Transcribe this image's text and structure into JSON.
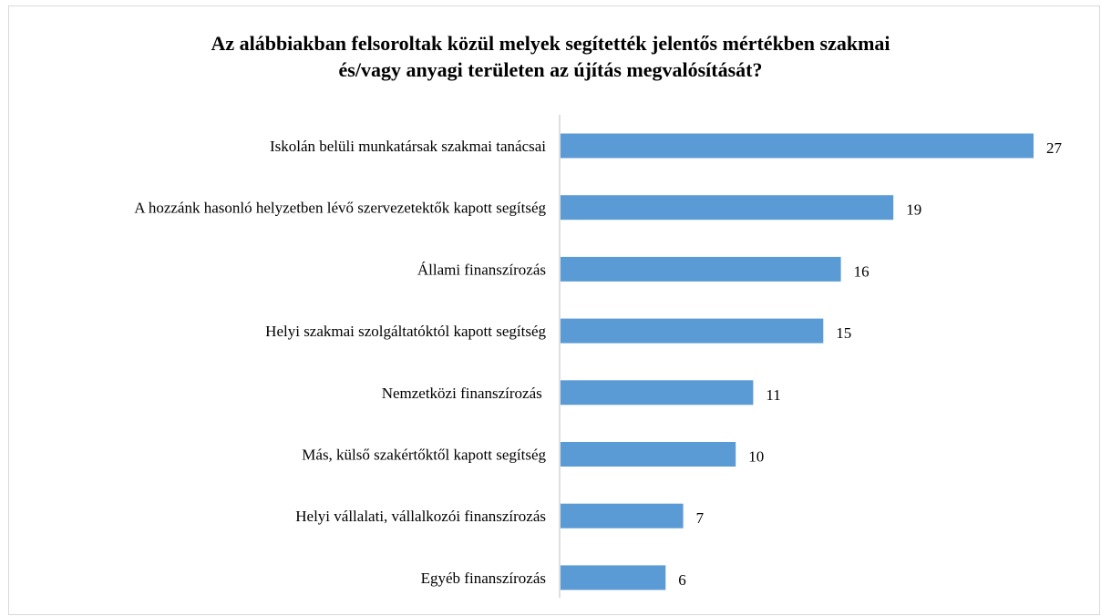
{
  "chart_data": {
    "type": "bar",
    "orientation": "horizontal",
    "title_lines": [
      "Az alábbiakban  felsoroltak közül melyek segítették jelentős mértékben szakmai",
      "és/vagy anyagi területen az újítás megvalósítását?"
    ],
    "categories": [
      "Iskolán belüli munkatársak szakmai tanácsai",
      "A hozzánk hasonló helyzetben lévő szervezetektők kapott segítség",
      "Állami finanszírozás",
      "Helyi szakmai szolgáltatóktól kapott segítség",
      "Nemzetközi finanszírozás ",
      "Más, külső szakértőktől kapott segítség",
      "Helyi vállalati, vállalkozói finanszírozás",
      "Egyéb finanszírozás"
    ],
    "values": [
      27,
      19,
      16,
      15,
      11,
      10,
      7,
      6
    ],
    "data_labels": [
      "27",
      "19",
      "16",
      "15",
      "11",
      "10",
      "7",
      "6"
    ],
    "bar_color": "#5b9bd5",
    "axis_color": "#bfbfbf",
    "xlim": [
      0,
      27
    ],
    "grid": false,
    "legend": "none"
  }
}
